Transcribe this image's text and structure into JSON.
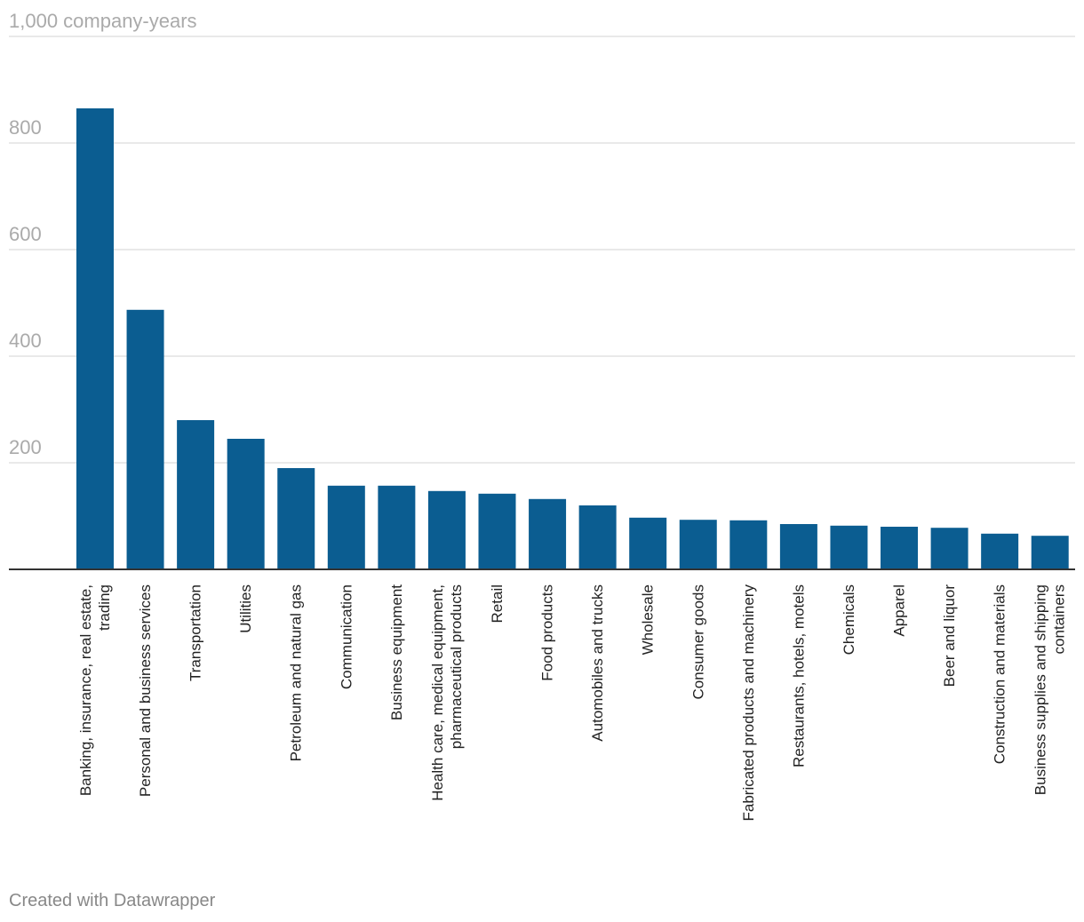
{
  "chart_data": {
    "type": "bar",
    "categories": [
      "Banking, insurance, real estate, trading",
      "Personal and business services",
      "Transportation",
      "Utilities",
      "Petroleum and natural gas",
      "Communication",
      "Business equipment",
      "Health care, medical equipment, pharmaceutical products",
      "Retail",
      "Food products",
      "Automobiles and trucks",
      "Wholesale",
      "Consumer goods",
      "Fabricated products and machinery",
      "Restaurants, hotels, motels",
      "Chemicals",
      "Apparel",
      "Beer and liquor",
      "Construction and materials",
      "Business supplies and shipping containers"
    ],
    "values": [
      865,
      487,
      280,
      245,
      190,
      157,
      157,
      147,
      142,
      132,
      120,
      97,
      93,
      92,
      85,
      82,
      80,
      78,
      67,
      63
    ],
    "color": "#0b5d91",
    "ylim": [
      0,
      1000
    ],
    "yticks": [
      200,
      400,
      600,
      800,
      {
        "value": 1000,
        "label": "1,000 company-years"
      }
    ],
    "grid": true,
    "credit": "Created with Datawrapper"
  }
}
